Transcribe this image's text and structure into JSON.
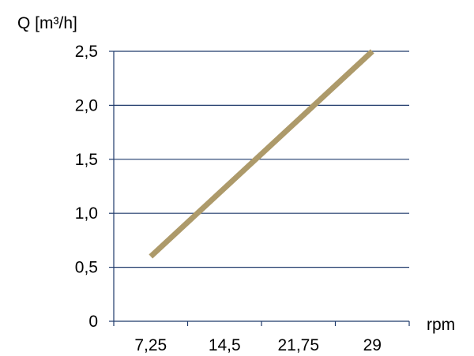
{
  "chart_data": {
    "type": "line",
    "ylabel": "Q [m³/h]",
    "xlabel": "rpm",
    "x_categories": [
      "7,25",
      "14,5",
      "21,75",
      "29"
    ],
    "y_ticks": [
      0,
      0.5,
      1.0,
      1.5,
      2.0,
      2.5
    ],
    "y_tick_labels": [
      "0",
      "0,5",
      "1,0",
      "1,5",
      "2,0",
      "2,5"
    ],
    "ylim": [
      0,
      2.5
    ],
    "xlim": [
      3.625,
      32.625
    ],
    "grid": "horizontal",
    "series": [
      {
        "x": [
          7.25,
          29
        ],
        "y": [
          0.6,
          2.5
        ]
      }
    ],
    "line_color": "#ad9a6a",
    "grid_color": "#1f3a6b",
    "axis_color": "#1f3a6b"
  }
}
